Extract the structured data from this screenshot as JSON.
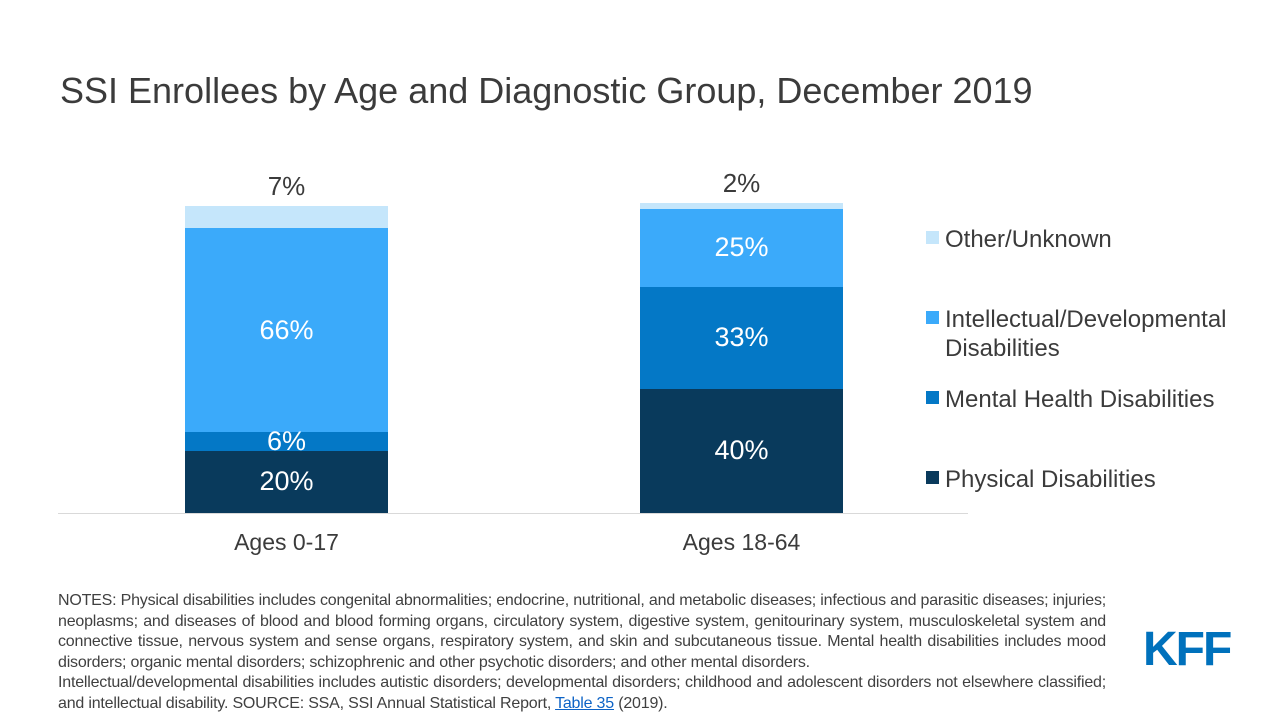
{
  "title": "SSI Enrollees by Age and Diagnostic Group, December 2019",
  "chart_data": {
    "type": "bar",
    "stacked": true,
    "unit": "percent",
    "title": "SSI Enrollees by Age and Diagnostic Group, December 2019",
    "categories": [
      "Ages 0-17",
      "Ages 18-64"
    ],
    "series": [
      {
        "name": "Other/Unknown",
        "color": "#c5e6fb",
        "values": [
          7,
          2
        ],
        "label_position": "above"
      },
      {
        "name": "Intellectual/Developmental Disabilities",
        "color": "#3baafa",
        "values": [
          66,
          25
        ],
        "label_position": "inside"
      },
      {
        "name": "Mental Health Disabilities",
        "color": "#0478c6",
        "values": [
          6,
          33
        ],
        "label_position": "inside"
      },
      {
        "name": "Physical Disabilities",
        "color": "#093a5c",
        "values": [
          20,
          40
        ],
        "label_position": "inside"
      }
    ],
    "value_suffix": "%",
    "xlabel": "",
    "ylabel": "",
    "ylim": [
      0,
      100
    ],
    "grid": false,
    "y_axis_visible": false,
    "legend_position": "right",
    "value_label_color_inside": "#ffffff",
    "value_label_color_above": "#3b3b3b",
    "baseline_color": "#d9d9d9"
  },
  "notes": {
    "paragraph1": "NOTES: Physical disabilities includes congenital abnormalities; endocrine, nutritional, and metabolic diseases; infectious and parasitic diseases; injuries; neoplasms; and diseases of blood and blood forming organs, circulatory system, digestive system, genitourinary system, musculoskeletal system and connective tissue, nervous system and sense organs, respiratory system, and skin and subcutaneous tissue. Mental health disabilities includes mood disorders; organic mental disorders; schizophrenic and other psychotic disorders; and other mental disorders.",
    "paragraph2_prefix": "Intellectual/developmental disabilities includes autistic disorders; developmental disorders; childhood and adolescent disorders not elsewhere classified; and intellectual disability. SOURCE: SSA, SSI Annual Statistical Report, ",
    "link_text": "Table 35",
    "paragraph2_suffix": " (2019)."
  },
  "logo": {
    "text": "KFF",
    "color": "#0071bc"
  }
}
